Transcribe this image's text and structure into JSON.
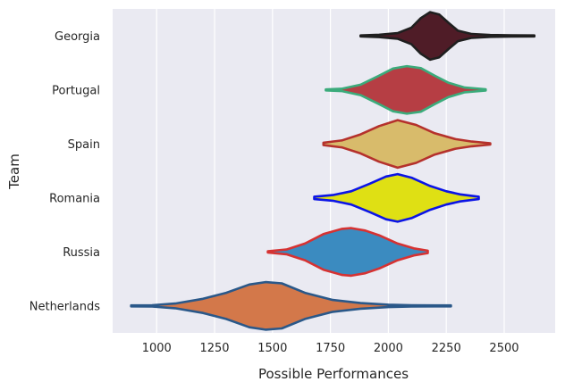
{
  "chart_data": {
    "type": "violin",
    "orientation": "horizontal",
    "xlabel": "Possible Performances",
    "ylabel": "Team",
    "xlim": [
      810,
      2720
    ],
    "xticks": [
      1000,
      1250,
      1500,
      1750,
      2000,
      2250,
      2500
    ],
    "grid": true,
    "background": "#eaeaf2",
    "categories": [
      {
        "name": "Georgia",
        "fill": "#4f1c27",
        "edge": "#1f1f1f",
        "range": [
          1880,
          2630
        ],
        "profile": [
          [
            1880,
            0.02
          ],
          [
            1960,
            0.05
          ],
          [
            2040,
            0.12
          ],
          [
            2100,
            0.35
          ],
          [
            2140,
            0.75
          ],
          [
            2180,
            1.0
          ],
          [
            2220,
            0.9
          ],
          [
            2260,
            0.55
          ],
          [
            2300,
            0.22
          ],
          [
            2360,
            0.08
          ],
          [
            2440,
            0.04
          ],
          [
            2530,
            0.03
          ],
          [
            2630,
            0.02
          ]
        ]
      },
      {
        "name": "Portugal",
        "fill": "#b63e44",
        "edge": "#3bab7b",
        "range": [
          1730,
          2420
        ],
        "profile": [
          [
            1730,
            0.02
          ],
          [
            1800,
            0.05
          ],
          [
            1880,
            0.22
          ],
          [
            1960,
            0.6
          ],
          [
            2020,
            0.9
          ],
          [
            2080,
            1.0
          ],
          [
            2140,
            0.92
          ],
          [
            2200,
            0.6
          ],
          [
            2260,
            0.3
          ],
          [
            2330,
            0.1
          ],
          [
            2420,
            0.03
          ]
        ]
      },
      {
        "name": "Spain",
        "fill": "#d8bb6b",
        "edge": "#b5312c",
        "range": [
          1720,
          2440
        ],
        "profile": [
          [
            1720,
            0.05
          ],
          [
            1800,
            0.15
          ],
          [
            1880,
            0.4
          ],
          [
            1960,
            0.75
          ],
          [
            2040,
            1.0
          ],
          [
            2120,
            0.8
          ],
          [
            2200,
            0.45
          ],
          [
            2290,
            0.2
          ],
          [
            2360,
            0.1
          ],
          [
            2440,
            0.03
          ]
        ]
      },
      {
        "name": "Romania",
        "fill": "#dfe014",
        "edge": "#0b14e6",
        "range": [
          1680,
          2390
        ],
        "profile": [
          [
            1680,
            0.05
          ],
          [
            1760,
            0.12
          ],
          [
            1840,
            0.28
          ],
          [
            1920,
            0.6
          ],
          [
            1990,
            0.9
          ],
          [
            2040,
            1.0
          ],
          [
            2100,
            0.85
          ],
          [
            2180,
            0.5
          ],
          [
            2250,
            0.28
          ],
          [
            2310,
            0.15
          ],
          [
            2390,
            0.05
          ]
        ]
      },
      {
        "name": "Russia",
        "fill": "#3b8bc0",
        "edge": "#d63232",
        "range": [
          1480,
          2170
        ],
        "profile": [
          [
            1480,
            0.03
          ],
          [
            1560,
            0.1
          ],
          [
            1640,
            0.35
          ],
          [
            1720,
            0.75
          ],
          [
            1800,
            0.97
          ],
          [
            1840,
            1.0
          ],
          [
            1900,
            0.9
          ],
          [
            1960,
            0.7
          ],
          [
            2040,
            0.35
          ],
          [
            2110,
            0.15
          ],
          [
            2170,
            0.05
          ]
        ]
      },
      {
        "name": "Netherlands",
        "fill": "#d3784a",
        "edge": "#2a5889",
        "range": [
          890,
          2270
        ],
        "profile": [
          [
            890,
            0.02
          ],
          [
            980,
            0.03
          ],
          [
            1080,
            0.1
          ],
          [
            1200,
            0.3
          ],
          [
            1300,
            0.55
          ],
          [
            1400,
            0.9
          ],
          [
            1470,
            1.0
          ],
          [
            1540,
            0.95
          ],
          [
            1640,
            0.55
          ],
          [
            1760,
            0.25
          ],
          [
            1880,
            0.12
          ],
          [
            2000,
            0.05
          ],
          [
            2100,
            0.03
          ],
          [
            2200,
            0.02
          ],
          [
            2270,
            0.02
          ]
        ]
      }
    ]
  }
}
